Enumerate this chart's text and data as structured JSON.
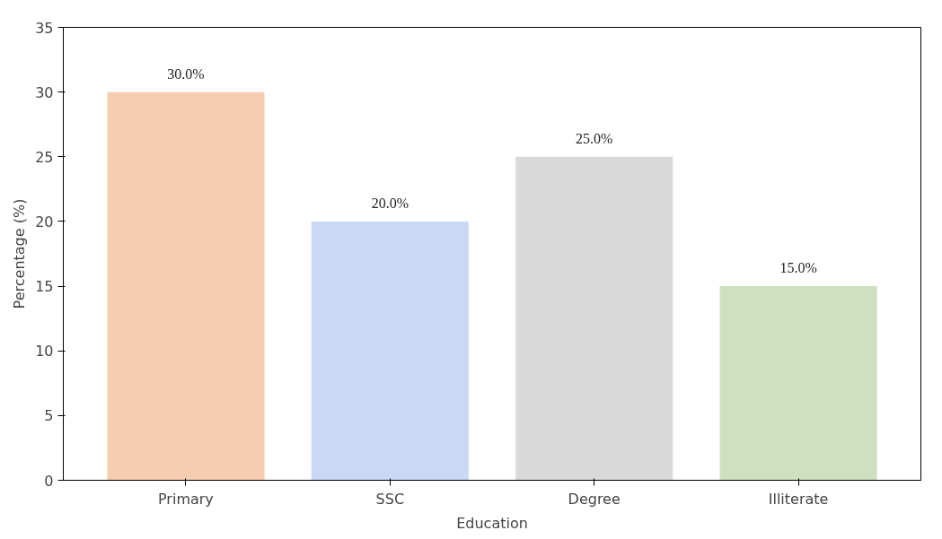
{
  "chart_data": {
    "type": "bar",
    "xlabel": "Education",
    "ylabel": "Percentage (%)",
    "categories": [
      "Primary",
      "SSC",
      "Degree",
      "Illiterate"
    ],
    "values": [
      30,
      20,
      25,
      15
    ],
    "colors": [
      "#f5cdb0",
      "#c9d8f5",
      "#d9d9d9",
      "#cfe0c0"
    ],
    "value_labels": [
      "30.0%",
      "20.0%",
      "25.0%",
      "15.0%"
    ],
    "ylim": [
      0,
      35
    ],
    "yticks": [
      0,
      5,
      10,
      15,
      20,
      25,
      30,
      35
    ],
    "grid": false
  }
}
